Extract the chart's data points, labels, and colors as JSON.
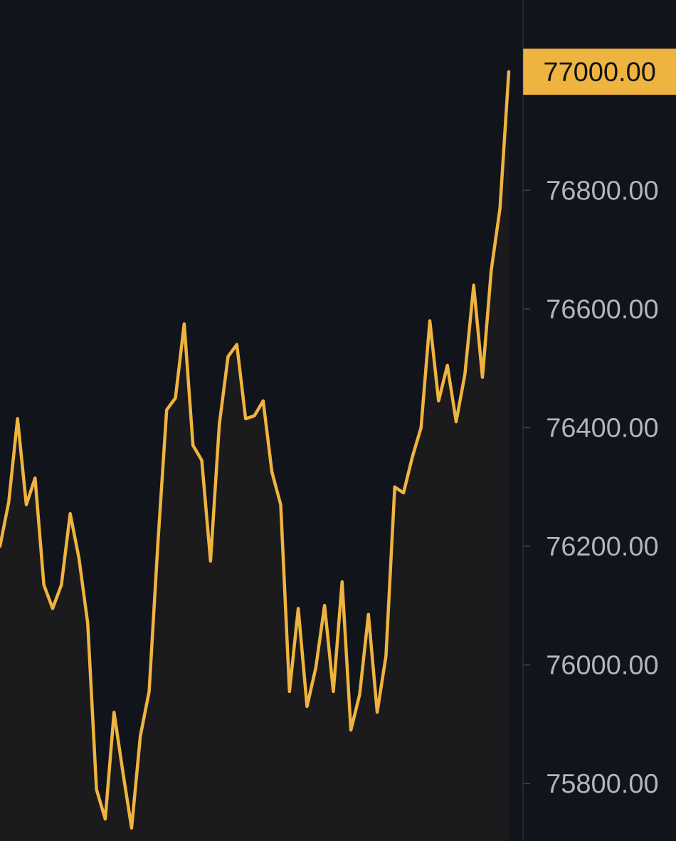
{
  "chart_data": {
    "type": "area",
    "categories": [
      null,
      null,
      null,
      null,
      null,
      null,
      null,
      null,
      null,
      null,
      null,
      null,
      null,
      null,
      null,
      null,
      null,
      null,
      null,
      null,
      null,
      null,
      null,
      null,
      null,
      null,
      null,
      null,
      null,
      null,
      null,
      null,
      null,
      null,
      null,
      null,
      null,
      null,
      null,
      null,
      null,
      null,
      null,
      null,
      null,
      null,
      null,
      null,
      null,
      null,
      null,
      null,
      null,
      null,
      null,
      null,
      null,
      null,
      null
    ],
    "values": [
      76200,
      76275,
      76415,
      76270,
      76315,
      76135,
      76095,
      76135,
      76255,
      76180,
      76070,
      75790,
      75740,
      75920,
      75820,
      75725,
      75880,
      75955,
      76205,
      76430,
      76450,
      76575,
      76370,
      76345,
      76175,
      76405,
      76520,
      76540,
      76415,
      76420,
      76445,
      76325,
      76270,
      75955,
      76095,
      75930,
      75995,
      76100,
      75955,
      76140,
      75890,
      75950,
      76085,
      75920,
      76015,
      76300,
      76290,
      76350,
      76400,
      76580,
      76445,
      76505,
      76410,
      76490,
      76640,
      76485,
      76665,
      76770,
      77000
    ],
    "color": "#efb43f",
    "ylim": [
      75703,
      77121
    ],
    "yticks": [
      {
        "value": 75800,
        "label": "75800.00"
      },
      {
        "value": 76000,
        "label": "76000.00"
      },
      {
        "value": 76200,
        "label": "76200.00"
      },
      {
        "value": 76400,
        "label": "76400.00"
      },
      {
        "value": 76600,
        "label": "76600.00"
      },
      {
        "value": 76800,
        "label": "76800.00"
      }
    ],
    "tick_labels": "y",
    "annotations": [
      "77000.00"
    ]
  }
}
